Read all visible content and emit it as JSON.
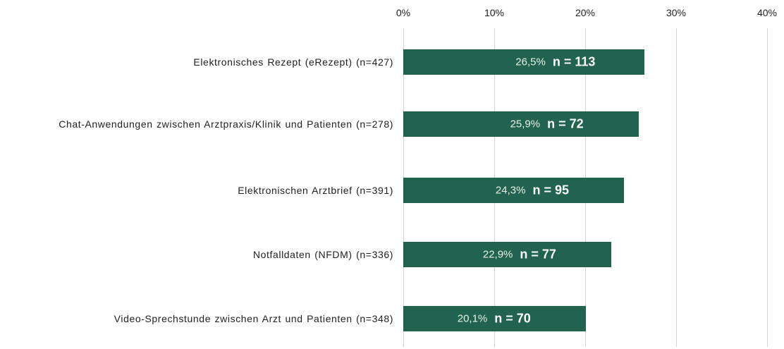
{
  "chart_data": {
    "type": "bar",
    "orientation": "horizontal",
    "categories": [
      "Elektronisches Rezept (eRezept) (n=427)",
      "Chat-Anwendungen zwischen Arztpraxis/Klinik und Patienten (n=278)",
      "Elektronischen Arztbrief (n=391)",
      "Notfalldaten (NFDM) (n=336)",
      "Video-Sprechstunde zwischen Arzt und Patienten (n=348)"
    ],
    "values": [
      26.5,
      25.9,
      24.3,
      22.9,
      20.1
    ],
    "value_labels": [
      "26,5%",
      "25,9%",
      "24,3%",
      "22,9%",
      "20,1%"
    ],
    "annotations": [
      "n = 113",
      "n = 72",
      "n = 95",
      "n = 77",
      "n = 70"
    ],
    "color": "#21634f",
    "xlim": [
      0,
      40
    ],
    "xticks": [
      {
        "value": 0,
        "label": "0%"
      },
      {
        "value": 10,
        "label": "10%"
      },
      {
        "value": 20,
        "label": "20%"
      },
      {
        "value": 30,
        "label": "30%"
      },
      {
        "value": 40,
        "label": "40%"
      }
    ],
    "grid": true
  }
}
